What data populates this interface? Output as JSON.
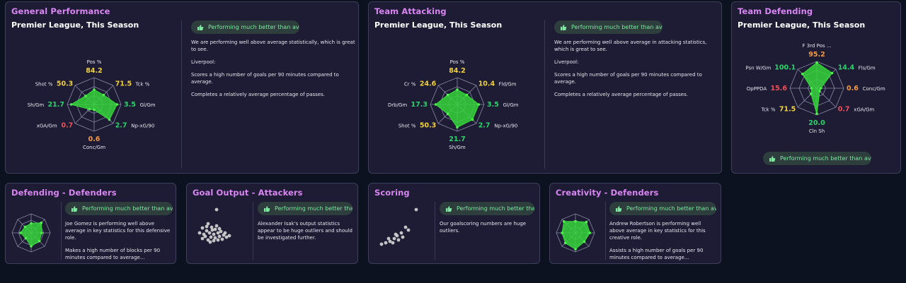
{
  "colors": {
    "good": "#2bd46b",
    "avg": "#f2d23c",
    "mid": "#f59a43",
    "bad": "#f0505a",
    "title": "#d985f2"
  },
  "general": {
    "title": "General Performance",
    "subtitle": "Premier League, This Season",
    "pill": "Performing much better than average",
    "desc": [
      "We are performing well above average statistically, which is great to see.",
      "Liverpool:",
      "Scores a high number of goals per 90 minutes compared to average.",
      "Completes a relatively average percentage of passes."
    ],
    "radar": [
      {
        "label": "Pos %",
        "value": "84.2",
        "level": 0.55,
        "color": "avg"
      },
      {
        "label": "Tck %",
        "value": "71.5",
        "level": 0.5,
        "color": "avg"
      },
      {
        "label": "Gl/Gm",
        "value": "3.5",
        "level": 0.85,
        "color": "good"
      },
      {
        "label": "Np-xG/90",
        "value": "2.7",
        "level": 0.8,
        "color": "good"
      },
      {
        "label": "Conc/Gm",
        "value": "0.6",
        "level": 0.2,
        "color": "mid"
      },
      {
        "label": "xGA/Gm",
        "value": "0.7",
        "level": 0.25,
        "color": "bad"
      },
      {
        "label": "Sh/Gm",
        "value": "21.7",
        "level": 0.85,
        "color": "good"
      },
      {
        "label": "Shot %",
        "value": "50.3",
        "level": 0.45,
        "color": "avg"
      }
    ]
  },
  "attacking": {
    "title": "Team Attacking",
    "subtitle": "Premier League, This Season",
    "pill": "Performing much better than average",
    "desc": [
      "We are performing well above average in attacking statistics, which is great to see.",
      "Liverpool:",
      "Scores a high number of goals per 90 minutes compared to average.",
      "Completes a relatively average percentage of passes."
    ],
    "radar": [
      {
        "label": "Pos %",
        "value": "84.2",
        "level": 0.55,
        "color": "avg"
      },
      {
        "label": "Fld/Gm",
        "value": "10.4",
        "level": 0.5,
        "color": "avg"
      },
      {
        "label": "Gl/Gm",
        "value": "3.5",
        "level": 0.8,
        "color": "good"
      },
      {
        "label": "Np-xG/90",
        "value": "2.7",
        "level": 0.8,
        "color": "good"
      },
      {
        "label": "Sh/Gm",
        "value": "21.7",
        "level": 0.85,
        "color": "good"
      },
      {
        "label": "Shot %",
        "value": "50.3",
        "level": 0.5,
        "color": "avg"
      },
      {
        "label": "Drb/Gm",
        "value": "17.3",
        "level": 0.8,
        "color": "good"
      },
      {
        "label": "Cr %",
        "value": "24.6",
        "level": 0.5,
        "color": "avg"
      }
    ]
  },
  "defending": {
    "title": "Team Defending",
    "subtitle": "Premier League, This Season",
    "pill": "Performing much better than average",
    "radar": [
      {
        "label": "F 3rd Pos ...",
        "value": "95.2",
        "level": 0.95,
        "color": "mid"
      },
      {
        "label": "Fls/Gm",
        "value": "14.4",
        "level": 0.8,
        "color": "good"
      },
      {
        "label": "Conc/Gm",
        "value": "0.6",
        "level": 0.15,
        "color": "mid"
      },
      {
        "label": "xGA/Gm",
        "value": "0.7",
        "level": 0.15,
        "color": "bad"
      },
      {
        "label": "Cln Sh",
        "value": "20.0",
        "level": 0.95,
        "color": "good"
      },
      {
        "label": "Tck %",
        "value": "71.5",
        "level": 0.3,
        "color": "avg"
      },
      {
        "label": "OpPPDA",
        "value": "15.6",
        "level": 0.2,
        "color": "bad"
      },
      {
        "label": "Psn W/Gm",
        "value": "100.1",
        "level": 0.75,
        "color": "good"
      }
    ]
  },
  "def_defenders": {
    "title": "Defending - Defenders",
    "pill": "Performing much better than avera...",
    "desc": [
      "Joe Gomez is performing well above average in key statistics for this defensive role.",
      "Makes a high number of blocks per 90 minutes compared to average..."
    ],
    "levels": [
      0.5,
      0.75,
      0.55,
      0.6,
      0.7,
      0.4,
      0.55,
      0.45
    ]
  },
  "goal_output": {
    "title": "Goal Output - Attackers",
    "pill": "Performing much better than ...",
    "desc": [
      "Alexander Isak's output statistics appear to be huge outliers and should be investigated further."
    ]
  },
  "scoring": {
    "title": "Scoring",
    "pill": "Performing much better than ...",
    "desc": [
      "Our goalscoring numbers are huge outliers."
    ]
  },
  "creativity": {
    "title": "Creativity - Defenders",
    "pill": "Performing much better than aver...",
    "desc": [
      "Andrew Robertson is performing well above average in key statistics for this creative role.",
      "Assists a high number of goals per 90 minutes compared to average..."
    ],
    "levels": [
      0.6,
      0.8,
      0.75,
      0.65,
      0.85,
      0.75,
      0.7,
      0.85
    ]
  }
}
